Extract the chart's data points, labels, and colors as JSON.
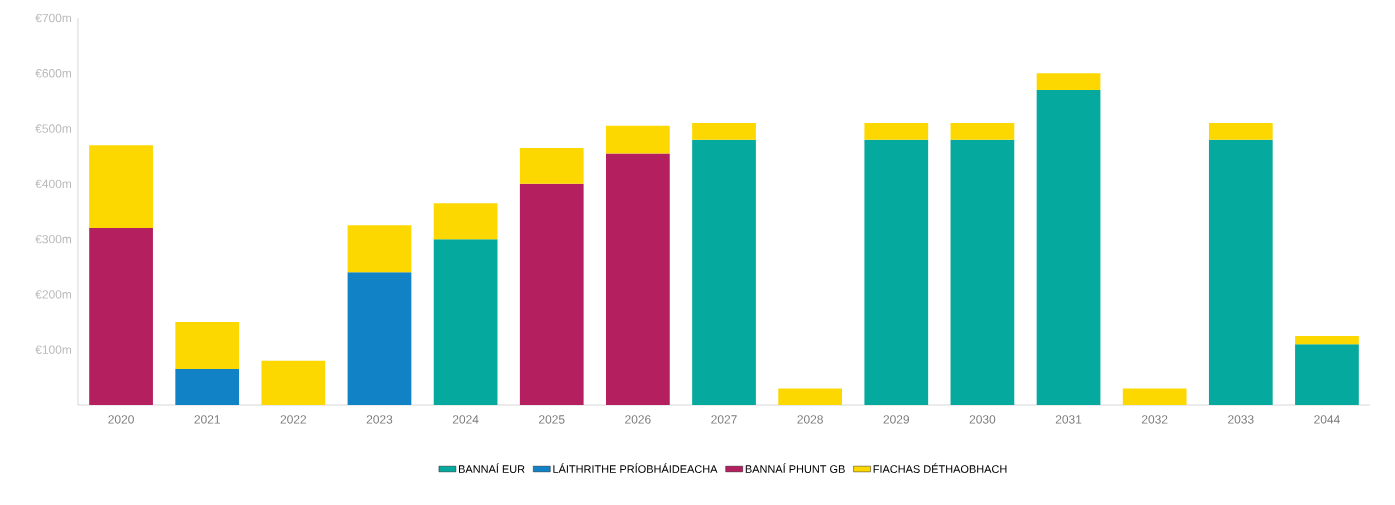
{
  "chart_data": {
    "type": "bar",
    "stacked": true,
    "categories": [
      "2020",
      "2021",
      "2022",
      "2023",
      "2024",
      "2025",
      "2026",
      "2027",
      "2028",
      "2029",
      "2030",
      "2031",
      "2032",
      "2033",
      "2044"
    ],
    "series": [
      {
        "name": "BANNAÍ EUR",
        "color": "#05a99d",
        "values": [
          null,
          null,
          null,
          null,
          300,
          null,
          null,
          480,
          null,
          480,
          480,
          570,
          null,
          480,
          110
        ]
      },
      {
        "name": "LÁITHRITHE PRÍOBHÁIDEACHA",
        "color": "#1182c6",
        "values": [
          null,
          65,
          null,
          240,
          null,
          null,
          null,
          null,
          null,
          null,
          null,
          null,
          null,
          null,
          null
        ]
      },
      {
        "name": "BANNAÍ PHUNT GB",
        "color": "#b41f5f",
        "values": [
          320,
          null,
          null,
          null,
          null,
          400,
          455,
          null,
          null,
          null,
          null,
          null,
          null,
          null,
          null
        ]
      },
      {
        "name": "FIACHAS DÉTHAOBHACH",
        "color": "#fdd800",
        "values": [
          150,
          85,
          80,
          85,
          65,
          65,
          50,
          30,
          30,
          30,
          30,
          30,
          30,
          30,
          15
        ]
      }
    ],
    "ylim": [
      0,
      700
    ],
    "yticks": [
      {
        "value": 100,
        "label": "€100m"
      },
      {
        "value": 200,
        "label": "€200m"
      },
      {
        "value": 300,
        "label": "€300m"
      },
      {
        "value": 400,
        "label": "€400m"
      },
      {
        "value": 500,
        "label": "€500m"
      },
      {
        "value": 600,
        "label": "€600m"
      },
      {
        "value": 700,
        "label": "€700m"
      }
    ],
    "legend": "bottom",
    "grid": false
  }
}
